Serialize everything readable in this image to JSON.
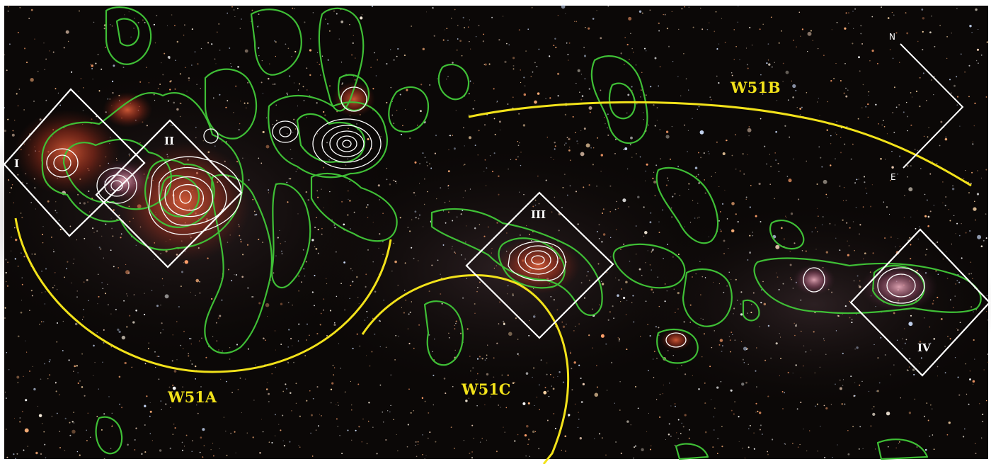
{
  "regions": {
    "w51a": "W51A",
    "w51b": "W51B",
    "w51c": "W51C"
  },
  "boxes": {
    "i": "I",
    "ii": "II",
    "iii": "III",
    "iv": "IV"
  },
  "compass": {
    "north": "N",
    "east": "E"
  },
  "colors": {
    "background": "#0b0807",
    "contour_green": "#3fbf36",
    "contour_white": "#ffffff",
    "arc_yellow": "#f2e21a",
    "box_white": "#ffffff",
    "nebula_red": "#c0442a"
  }
}
